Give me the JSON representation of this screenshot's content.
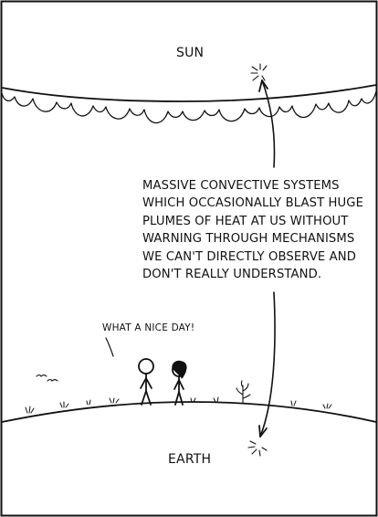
{
  "comic": {
    "sun_label": "SUN",
    "earth_label": "EARTH",
    "caption_lines": [
      "MASSIVE CONVECTIVE SYSTEMS",
      "WHICH OCCASIONALLY BLAST HUGE",
      "PLUMES OF HEAT AT US WITHOUT",
      "WARNING THROUGH MECHANISMS",
      "WE CAN'T DIRECTLY OBSERVE AND",
      "DON'T REALLY UNDERSTAND."
    ],
    "speech_text": "WHAT A NICE DAY!"
  }
}
